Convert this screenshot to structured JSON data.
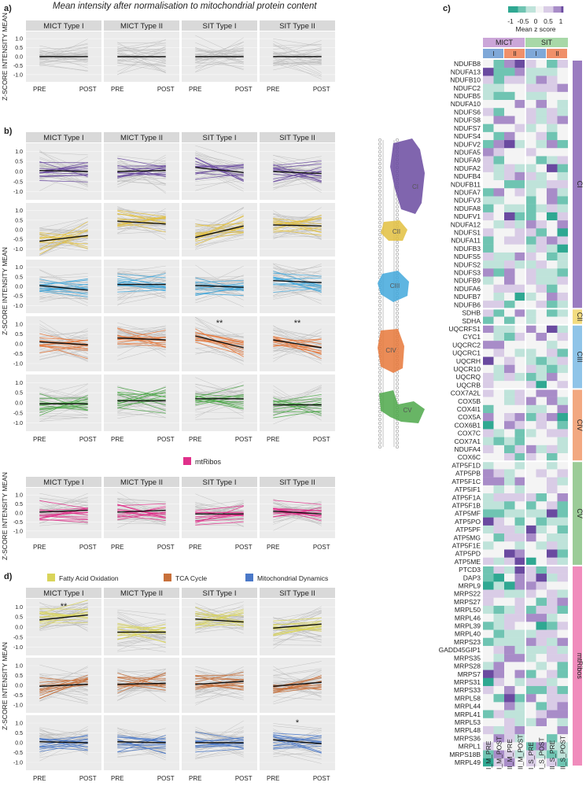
{
  "figure_title": "Mean intensity after normalisation to mitochondrial protein content",
  "panel_labels": {
    "a": "a)",
    "b": "b)",
    "c": "c)",
    "d": "d)"
  },
  "y_axis_label": "Z-SCORE INTENSITY MEAN",
  "x_ticks": [
    "PRE",
    "POST"
  ],
  "y_ticks": [
    "1.0",
    "0.5",
    "0.0",
    "-0.5",
    "-1.0"
  ],
  "strip_labels": [
    "MICT Type I",
    "MICT Type II",
    "SIT Type I",
    "SIT Type II"
  ],
  "colors": {
    "panel_bg": "#ebebeb",
    "strip_bg": "#d9d9d9",
    "grey_line": "#b8b8b8",
    "mean_line": "#111111",
    "CI": "#6a4aa0",
    "CII": "#e2c040",
    "CIII": "#42a8dc",
    "CIV": "#e8783a",
    "CV": "#4ea84a",
    "mtRibos": "#e0308a",
    "FAO": "#d9d45a",
    "TCA": "#c8703a",
    "DYN": "#4a78c8"
  },
  "legends": {
    "mtribos": "mtRibos",
    "fao": "Fatty Acid Oxidation",
    "tca": "TCA Cycle",
    "dyn": "Mitochondrial Dynamics"
  },
  "complex_labels": [
    "CI",
    "CII",
    "CIII",
    "CIV",
    "CV"
  ],
  "chart_data": [
    {
      "type": "line",
      "panel": "a",
      "title": "Mean intensity after normalisation to mitochondrial protein content",
      "xlabel": "",
      "ylabel": "Z-SCORE INTENSITY MEAN",
      "x": [
        "PRE",
        "POST"
      ],
      "ylim": [
        -1.4,
        1.4
      ],
      "series": [
        {
          "name": "MICT Type I",
          "mean": [
            0.0,
            0.0
          ]
        },
        {
          "name": "MICT Type II",
          "mean": [
            0.0,
            0.0
          ]
        },
        {
          "name": "SIT Type I",
          "mean": [
            0.0,
            0.0
          ]
        },
        {
          "name": "SIT Type II",
          "mean": [
            0.0,
            0.0
          ]
        }
      ]
    },
    {
      "type": "line",
      "panel": "b",
      "ylabel": "Z-SCORE INTENSITY MEAN",
      "x": [
        "PRE",
        "POST"
      ],
      "ylim": [
        -1.4,
        1.4
      ],
      "rows": [
        {
          "name": "CI",
          "means": [
            [
              0.05,
              0.0
            ],
            [
              0.0,
              0.05
            ],
            [
              0.2,
              -0.05
            ],
            [
              0.0,
              -0.1
            ]
          ],
          "annotations": [
            "",
            "",
            "",
            ""
          ]
        },
        {
          "name": "CII",
          "means": [
            [
              -0.6,
              -0.3
            ],
            [
              0.45,
              0.3
            ],
            [
              -0.4,
              0.2
            ],
            [
              0.25,
              0.2
            ]
          ],
          "annotations": [
            "",
            "",
            "",
            ""
          ]
        },
        {
          "name": "CIII",
          "means": [
            [
              0.05,
              -0.2
            ],
            [
              0.1,
              0.1
            ],
            [
              0.05,
              -0.05
            ],
            [
              0.3,
              0.2
            ]
          ],
          "annotations": [
            "",
            "",
            "",
            ""
          ]
        },
        {
          "name": "CIV",
          "means": [
            [
              0.1,
              -0.05
            ],
            [
              0.3,
              0.2
            ],
            [
              0.4,
              -0.2
            ],
            [
              0.2,
              -0.2
            ]
          ],
          "annotations": [
            "",
            "",
            "**",
            "**"
          ]
        },
        {
          "name": "CV",
          "means": [
            [
              -0.05,
              -0.05
            ],
            [
              0.1,
              0.1
            ],
            [
              0.2,
              0.2
            ],
            [
              -0.1,
              -0.1
            ]
          ],
          "annotations": [
            "",
            "",
            "",
            ""
          ]
        },
        {
          "name": "mtRibos",
          "means": [
            [
              0.05,
              0.15
            ],
            [
              0.05,
              0.15
            ],
            [
              -0.05,
              -0.05
            ],
            [
              0.1,
              -0.05
            ]
          ],
          "annotations": [
            "",
            "",
            "",
            ""
          ]
        }
      ]
    },
    {
      "type": "line",
      "panel": "d",
      "ylabel": "Z-SCORE INTENSITY MEAN",
      "x": [
        "PRE",
        "POST"
      ],
      "ylim": [
        -1.4,
        1.4
      ],
      "rows": [
        {
          "name": "Fatty Acid Oxidation",
          "means": [
            [
              0.35,
              0.6
            ],
            [
              -0.25,
              -0.25
            ],
            [
              0.4,
              0.25
            ],
            [
              -0.05,
              0.15
            ]
          ],
          "annotations": [
            "**",
            "",
            "",
            ""
          ]
        },
        {
          "name": "TCA Cycle",
          "means": [
            [
              -0.05,
              0.05
            ],
            [
              0.05,
              0.1
            ],
            [
              0.05,
              0.2
            ],
            [
              -0.05,
              0.15
            ]
          ],
          "annotations": [
            "",
            "",
            "",
            ""
          ]
        },
        {
          "name": "Mitochondrial Dynamics",
          "means": [
            [
              0.05,
              0.0
            ],
            [
              0.05,
              0.0
            ],
            [
              0.0,
              0.0
            ],
            [
              0.15,
              -0.05
            ]
          ],
          "annotations": [
            "",
            "",
            "",
            "*"
          ]
        }
      ]
    },
    {
      "type": "heatmap",
      "panel": "c",
      "colorbar": {
        "title": "Mean z score",
        "ticks": [
          "-1",
          "-0.5",
          "0",
          "0.5",
          "1"
        ],
        "range": [
          -1,
          1
        ]
      },
      "groups": [
        "MICT",
        "SIT"
      ],
      "subgroups": [
        "I",
        "II",
        "I",
        "II"
      ],
      "columns": [
        "I_M_PRE",
        "I_M_POST",
        "II_M_PRE",
        "II_M_POST",
        "I_S_PRE",
        "I_S_POST",
        "II_S_PRE",
        "II_S_POST"
      ],
      "row_groups": [
        {
          "name": "CI",
          "rows": [
            "NDUFB8",
            "NDUFA13",
            "NDUFB10",
            "NDUFC2",
            "NDUFB5",
            "NDUFA10",
            "NDUFS6",
            "NDUFS8",
            "NDUFS7",
            "NDUFS4",
            "NDUFV2",
            "NDUFA5",
            "NDUFA9",
            "NDUFA2",
            "NDUFB4",
            "NDUFB11",
            "NDUFA7",
            "NDUFV3",
            "NDUFA8",
            "NDUFV1",
            "NDUFA12",
            "NDUFS1",
            "NDUFA11",
            "NDUFB3",
            "NDUFS5",
            "NDUFS2",
            "NDUFS3",
            "NDUFB9",
            "NDUFA6",
            "NDUFB7",
            "NDUFB6"
          ]
        },
        {
          "name": "CII",
          "rows": [
            "SDHB",
            "SDHA"
          ]
        },
        {
          "name": "CIII",
          "rows": [
            "UQCRFS1",
            "CYC1",
            "UQCRC2",
            "UQCRC1",
            "UQCRH",
            "UQCR10",
            "UQCRQ",
            "UQCRB"
          ]
        },
        {
          "name": "CIV",
          "rows": [
            "COX7A2L",
            "COX5B",
            "COX4I1",
            "COX5A",
            "COX6B1",
            "COX7C",
            "COX7A1",
            "NDUFA4",
            "COX6C"
          ]
        },
        {
          "name": "CV",
          "rows": [
            "ATP5F1D",
            "ATP5PB",
            "ATP5F1C",
            "ATP5IF1",
            "ATP5F1A",
            "ATP5F1B",
            "ATP5MF",
            "ATP5PO",
            "ATP5PF",
            "ATP5MG",
            "ATP5F1E",
            "ATP5PD",
            "ATP5ME"
          ]
        },
        {
          "name": "mtRibos",
          "rows": [
            "PTCD3",
            "DAP3",
            "MRPL9",
            "MRPS22",
            "MRPS27",
            "MRPL50",
            "MRPL46",
            "MRPL39",
            "MRPL40",
            "MRPS23",
            "GADD45GIP1",
            "MRPS35",
            "MRPS28",
            "MRPS7",
            "MRPS31",
            "MRPS33",
            "MRPL58",
            "MRPL44",
            "MRPL41",
            "MRPL53",
            "MRPL48",
            "MRPS36",
            "MRPL1",
            "MRPS18B",
            "MRPL49"
          ]
        }
      ]
    }
  ]
}
